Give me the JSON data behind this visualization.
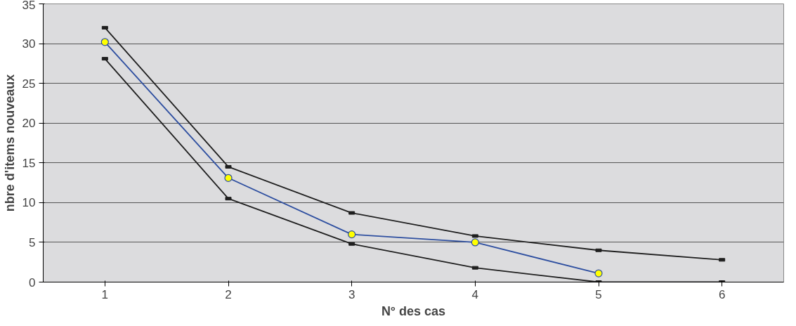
{
  "chart_data": {
    "type": "line",
    "xlabel": "N° des cas",
    "ylabel": "nbre d'items nouveaux",
    "categories": [
      "1",
      "2",
      "3",
      "4",
      "5",
      "6"
    ],
    "series": [
      {
        "color": "#1f1f1f",
        "marker": "square",
        "values": [
          32,
          14.5,
          8.7,
          5.8,
          4,
          2.8
        ]
      },
      {
        "color": "#2e4fa0",
        "marker": "circle",
        "values": [
          30.2,
          13.1,
          6,
          5,
          1.1,
          null
        ]
      },
      {
        "color": "#1f1f1f",
        "marker": "square",
        "values": [
          28.1,
          10.5,
          4.8,
          1.8,
          0,
          0
        ]
      }
    ],
    "ylim": [
      0,
      35
    ],
    "yticks": [
      0,
      5,
      10,
      15,
      20,
      25,
      30,
      35
    ],
    "grid": "y"
  }
}
